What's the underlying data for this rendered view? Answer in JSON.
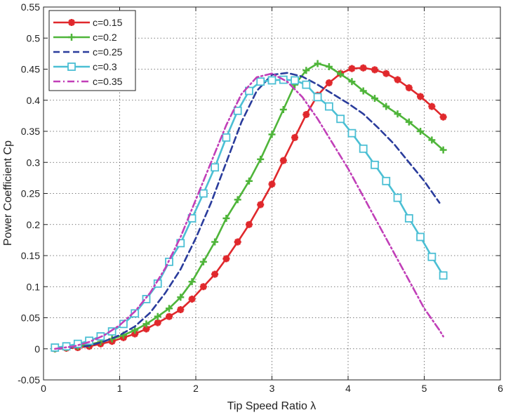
{
  "chart_data": {
    "type": "line",
    "title": "",
    "xlabel": "Tip Speed Ratio  λ",
    "ylabel": "Power Coefficient  Cp",
    "xlim": [
      0,
      6
    ],
    "ylim": [
      -0.05,
      0.55
    ],
    "xticks": [
      0,
      1,
      2,
      3,
      4,
      5,
      6
    ],
    "xtick_labels": [
      "0",
      "1",
      "2",
      "3",
      "4",
      "5",
      "6"
    ],
    "yticks": [
      -0.05,
      0,
      0.05,
      0.1,
      0.15,
      0.2,
      0.25,
      0.3,
      0.35,
      0.4,
      0.45,
      0.5,
      0.55
    ],
    "ytick_labels": [
      "-0.05",
      "0",
      "0.05",
      "0.1",
      "0.15",
      "0.2",
      "0.25",
      "0.3",
      "0.35",
      "0.4",
      "0.45",
      "0.5",
      "0.55"
    ],
    "grid": true,
    "legend_position": "top-left",
    "series": [
      {
        "name": "c=0.15",
        "color": "#e0282c",
        "marker": "asterisk",
        "dash": "solid",
        "x": [
          0.15,
          0.3,
          0.45,
          0.6,
          0.75,
          0.9,
          1.05,
          1.2,
          1.35,
          1.5,
          1.65,
          1.8,
          1.95,
          2.1,
          2.25,
          2.4,
          2.55,
          2.7,
          2.85,
          3.0,
          3.15,
          3.3,
          3.45,
          3.6,
          3.75,
          3.9,
          4.05,
          4.2,
          4.35,
          4.5,
          4.65,
          4.8,
          4.95,
          5.1,
          5.25
        ],
        "y": [
          0.0,
          0.001,
          0.002,
          0.004,
          0.008,
          0.012,
          0.018,
          0.024,
          0.032,
          0.042,
          0.052,
          0.063,
          0.08,
          0.1,
          0.12,
          0.145,
          0.172,
          0.2,
          0.232,
          0.265,
          0.303,
          0.34,
          0.377,
          0.408,
          0.428,
          0.443,
          0.451,
          0.452,
          0.449,
          0.443,
          0.433,
          0.42,
          0.406,
          0.39,
          0.373
        ]
      },
      {
        "name": "c=0.2",
        "color": "#4fb53a",
        "marker": "plus",
        "dash": "solid",
        "x": [
          0.15,
          0.3,
          0.45,
          0.6,
          0.75,
          0.9,
          1.05,
          1.2,
          1.35,
          1.5,
          1.65,
          1.8,
          1.95,
          2.1,
          2.25,
          2.4,
          2.55,
          2.7,
          2.85,
          3.0,
          3.15,
          3.3,
          3.45,
          3.6,
          3.75,
          3.9,
          4.05,
          4.2,
          4.35,
          4.5,
          4.65,
          4.8,
          4.95,
          5.1,
          5.25
        ],
        "y": [
          0.0,
          0.002,
          0.004,
          0.007,
          0.011,
          0.016,
          0.022,
          0.03,
          0.04,
          0.052,
          0.065,
          0.083,
          0.108,
          0.14,
          0.172,
          0.21,
          0.24,
          0.27,
          0.305,
          0.345,
          0.385,
          0.425,
          0.448,
          0.459,
          0.454,
          0.442,
          0.43,
          0.415,
          0.403,
          0.39,
          0.378,
          0.365,
          0.35,
          0.336,
          0.32
        ]
      },
      {
        "name": "c=0.25",
        "color": "#2a3c9c",
        "marker": "none",
        "dash": "dashed",
        "x": [
          0.15,
          0.4,
          0.6,
          0.8,
          1.0,
          1.2,
          1.4,
          1.6,
          1.8,
          2.0,
          2.2,
          2.4,
          2.6,
          2.8,
          3.0,
          3.2,
          3.4,
          3.6,
          3.8,
          4.0,
          4.2,
          4.4,
          4.6,
          4.8,
          5.0,
          5.2
        ],
        "y": [
          0.0,
          0.002,
          0.005,
          0.012,
          0.022,
          0.036,
          0.058,
          0.09,
          0.128,
          0.178,
          0.235,
          0.3,
          0.365,
          0.415,
          0.441,
          0.444,
          0.438,
          0.425,
          0.41,
          0.395,
          0.378,
          0.355,
          0.33,
          0.3,
          0.27,
          0.235
        ]
      },
      {
        "name": "c=0.3",
        "color": "#4bbfd4",
        "marker": "square",
        "dash": "solid",
        "x": [
          0.15,
          0.3,
          0.45,
          0.6,
          0.75,
          0.9,
          1.05,
          1.2,
          1.35,
          1.5,
          1.65,
          1.8,
          1.95,
          2.1,
          2.25,
          2.4,
          2.55,
          2.7,
          2.85,
          3.0,
          3.15,
          3.3,
          3.45,
          3.6,
          3.75,
          3.9,
          4.05,
          4.2,
          4.35,
          4.5,
          4.65,
          4.8,
          4.95,
          5.1,
          5.25
        ],
        "y": [
          0.002,
          0.004,
          0.008,
          0.013,
          0.02,
          0.028,
          0.04,
          0.057,
          0.08,
          0.105,
          0.14,
          0.17,
          0.21,
          0.25,
          0.292,
          0.34,
          0.383,
          0.415,
          0.43,
          0.432,
          0.433,
          0.432,
          0.425,
          0.405,
          0.39,
          0.37,
          0.347,
          0.322,
          0.296,
          0.27,
          0.243,
          0.21,
          0.18,
          0.148,
          0.118
        ]
      },
      {
        "name": "c=0.35",
        "color": "#c13fb8",
        "marker": "none",
        "dash": "dashdot",
        "x": [
          0.15,
          0.4,
          0.6,
          0.8,
          1.0,
          1.2,
          1.4,
          1.6,
          1.8,
          2.0,
          2.2,
          2.4,
          2.6,
          2.8,
          3.0,
          3.2,
          3.4,
          3.6,
          3.8,
          4.0,
          4.2,
          4.4,
          4.6,
          4.8,
          5.0,
          5.2,
          5.25
        ],
        "y": [
          0.0,
          0.004,
          0.011,
          0.022,
          0.038,
          0.06,
          0.09,
          0.13,
          0.18,
          0.24,
          0.3,
          0.36,
          0.41,
          0.437,
          0.443,
          0.43,
          0.405,
          0.37,
          0.33,
          0.29,
          0.245,
          0.2,
          0.155,
          0.11,
          0.065,
          0.03,
          0.02
        ]
      }
    ]
  }
}
